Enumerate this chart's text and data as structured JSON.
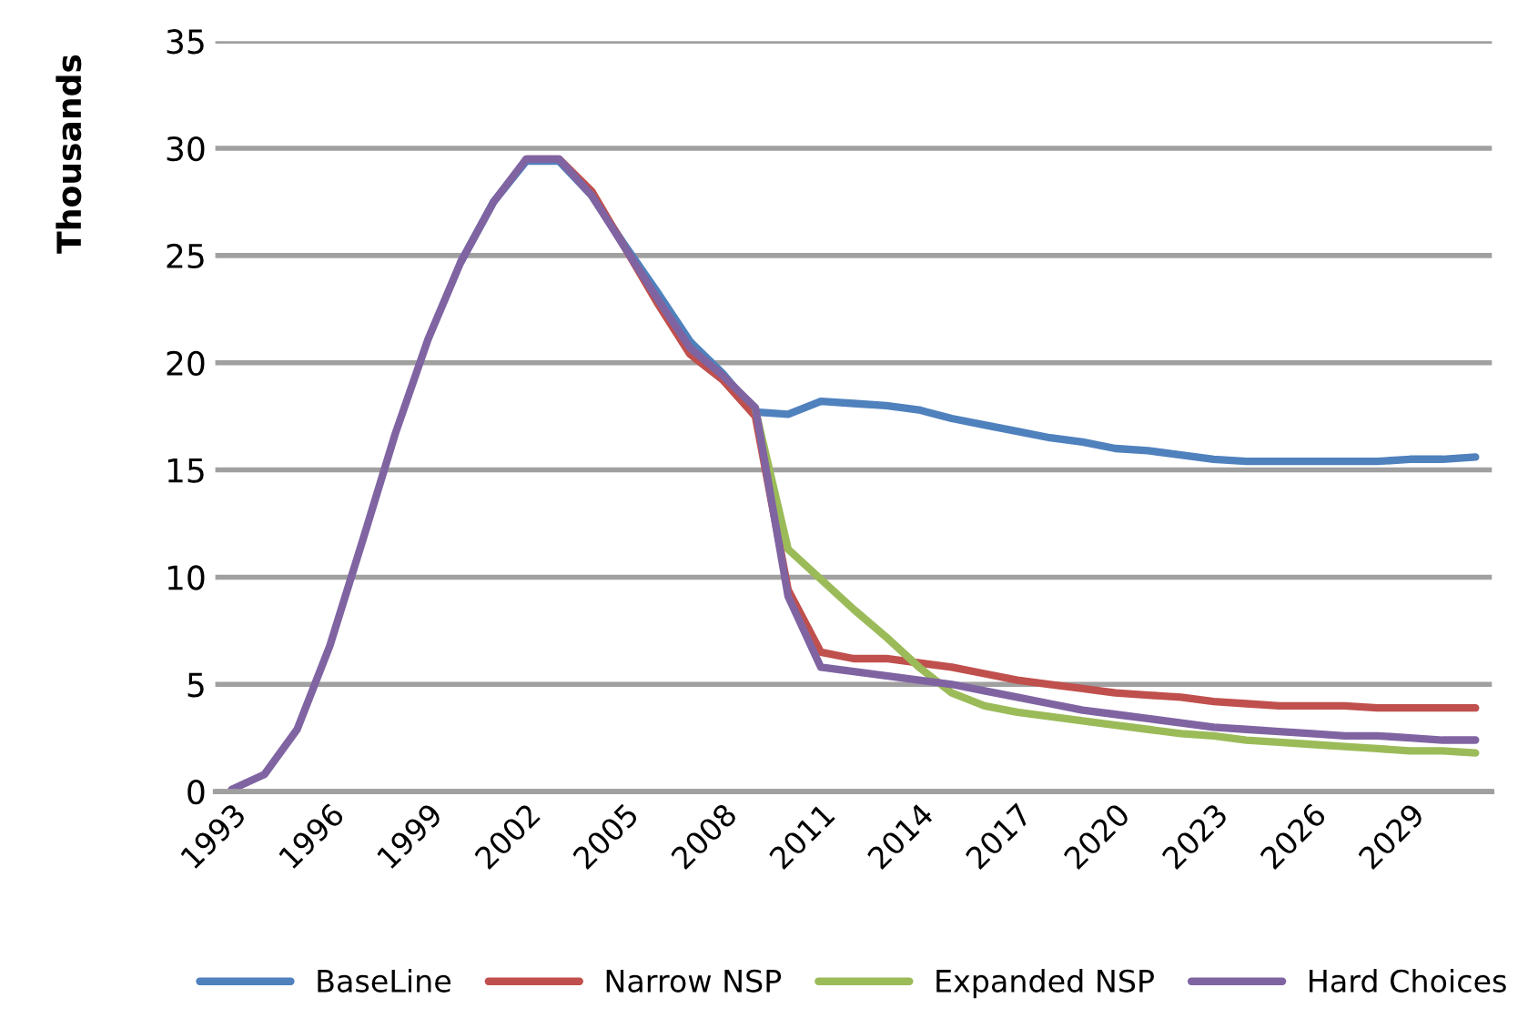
{
  "chart_data": {
    "type": "line",
    "ylabel": "Thousands",
    "categories": [
      "1993",
      null,
      null,
      "1996",
      null,
      null,
      "1999",
      null,
      null,
      "2002",
      null,
      null,
      "2005",
      null,
      null,
      "2008",
      null,
      null,
      "2011",
      null,
      null,
      "2014",
      null,
      null,
      "2017",
      null,
      null,
      "2020",
      null,
      null,
      "2023",
      null,
      null,
      "2026",
      null,
      null,
      "2029",
      null,
      null
    ],
    "series": [
      {
        "name": "BaseLine",
        "color": "#4f81bd",
        "values": [
          null,
          null,
          null,
          null,
          null,
          null,
          null,
          24.7,
          27.5,
          29.4,
          29.4,
          27.8,
          25.5,
          23.3,
          21.0,
          19.5,
          17.7,
          17.6,
          18.2,
          18.1,
          18.0,
          17.8,
          17.4,
          17.1,
          16.8,
          16.5,
          16.3,
          16.0,
          15.9,
          15.7,
          15.5,
          15.4,
          15.4,
          15.4,
          15.4,
          15.4,
          15.5,
          15.5,
          15.6
        ]
      },
      {
        "name": "Narrow NSP",
        "color": "#c0504d",
        "values": [
          null,
          null,
          null,
          null,
          null,
          null,
          null,
          null,
          null,
          29.5,
          29.5,
          28.0,
          25.4,
          22.8,
          20.4,
          19.2,
          17.5,
          9.4,
          6.5,
          6.2,
          6.2,
          6.0,
          5.8,
          5.5,
          5.2,
          5.0,
          4.8,
          4.6,
          4.5,
          4.4,
          4.2,
          4.1,
          4.0,
          4.0,
          4.0,
          3.9,
          3.9,
          3.9,
          3.9
        ]
      },
      {
        "name": "Expanded NSP",
        "color": "#9bbb59",
        "values": [
          null,
          null,
          null,
          null,
          null,
          null,
          null,
          null,
          null,
          null,
          null,
          null,
          null,
          null,
          null,
          null,
          17.8,
          11.3,
          9.9,
          8.5,
          7.2,
          5.8,
          4.6,
          4.0,
          3.7,
          3.5,
          3.3,
          3.1,
          2.9,
          2.7,
          2.6,
          2.4,
          2.3,
          2.2,
          2.1,
          2.0,
          1.9,
          1.9,
          1.8
        ]
      },
      {
        "name": "Hard Choices",
        "color": "#8064a2",
        "values": [
          0.1,
          0.8,
          2.9,
          6.8,
          11.7,
          16.7,
          21.1,
          24.7,
          27.5,
          29.5,
          29.5,
          27.8,
          25.4,
          23.0,
          20.7,
          19.4,
          17.9,
          9.1,
          5.8,
          5.6,
          5.4,
          5.2,
          5.0,
          4.7,
          4.4,
          4.1,
          3.8,
          3.6,
          3.4,
          3.2,
          3.0,
          2.9,
          2.8,
          2.7,
          2.6,
          2.6,
          2.5,
          2.4,
          2.4
        ]
      }
    ],
    "ylim": [
      0,
      35
    ],
    "yticks": [
      0,
      5,
      10,
      15,
      20,
      25,
      30,
      35
    ],
    "grid": "y",
    "legend": "bottom",
    "marker": "none",
    "line_style": "solid"
  }
}
